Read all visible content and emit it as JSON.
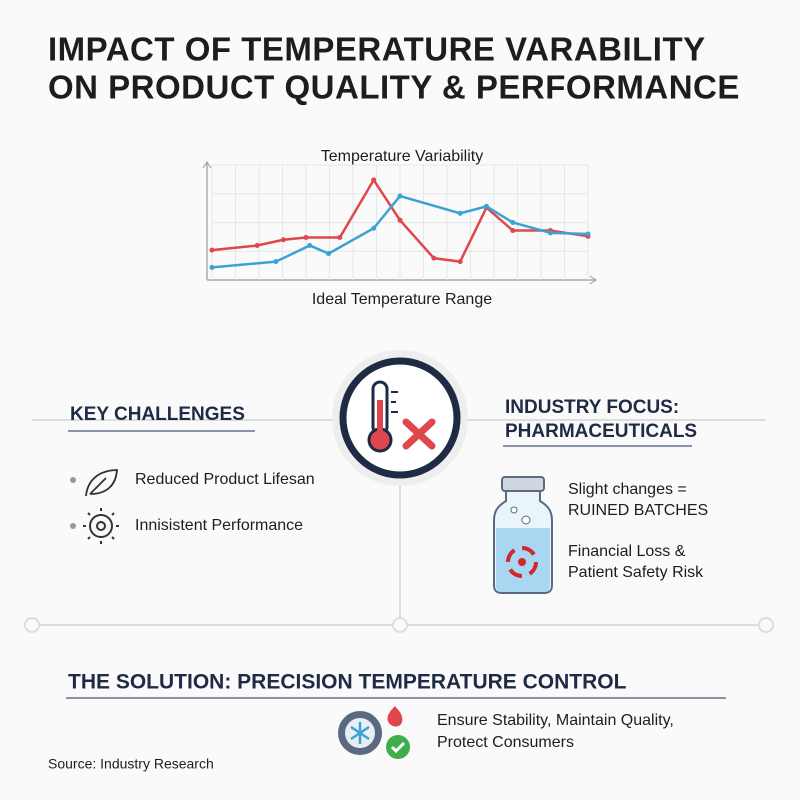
{
  "header": {
    "title_lines": [
      "IMPACT OF TEMPERATURE VARABILITY",
      "ON PRODUCT QUALITY & PERFORMANCE"
    ]
  },
  "chart": {
    "type": "line",
    "title": "Temperature Variability",
    "x_label": "Ideal Temperature Range",
    "xlim": [
      0,
      100
    ],
    "ylim": [
      0,
      100
    ],
    "grid": true,
    "series": [
      {
        "color": "#e0474c",
        "x": [
          0,
          12,
          19,
          25,
          34,
          43,
          50,
          59,
          66,
          73,
          80,
          90,
          100
        ],
        "values": [
          26,
          30,
          35,
          37,
          37,
          87,
          52,
          19,
          16,
          63,
          43,
          43,
          38
        ]
      },
      {
        "color": "#3aa3d4",
        "x": [
          0,
          17,
          26,
          31,
          43,
          50,
          66,
          73,
          80,
          90,
          100
        ],
        "values": [
          11,
          16,
          30,
          23,
          45,
          73,
          58,
          64,
          50,
          41,
          40
        ]
      }
    ]
  },
  "challenges": {
    "heading": "KEY CHALLENGES",
    "items": [
      "Reduced Product Lifesan",
      "Innisistent Performance"
    ]
  },
  "focus": {
    "heading_lines": [
      "INDUSTRY FOCUS:",
      "PHARMACEUTICALS"
    ],
    "notes": [
      [
        "Slight changes =",
        "RUINED BATCHES"
      ],
      [
        "Financial Loss &",
        "Patient Safety Risk"
      ]
    ]
  },
  "solution": {
    "heading": "THE SOLUTION: PRECISION TEMPERATURE CONTROL",
    "lines": [
      "Ensure Stability, Maintain Quality,",
      "Protect Consumers"
    ]
  },
  "source": "Source: Industry Research"
}
